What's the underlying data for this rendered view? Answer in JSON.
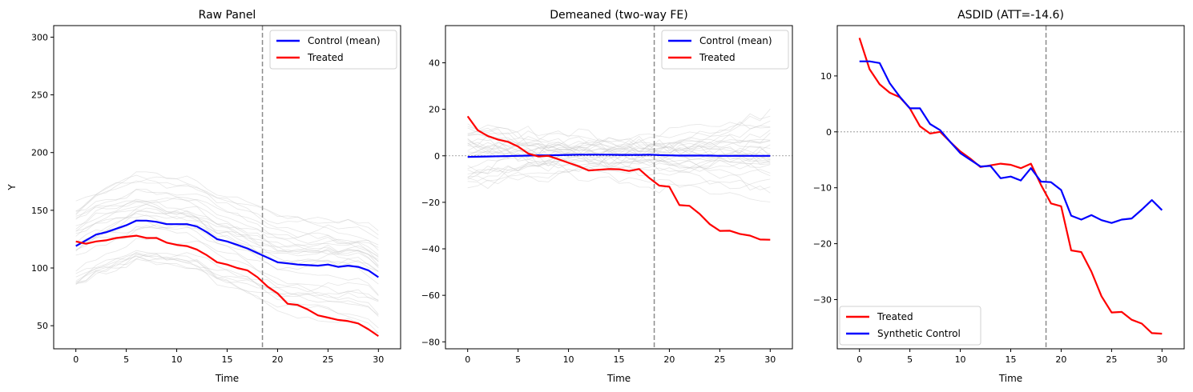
{
  "colors": {
    "treated": "#ff0000",
    "control": "#0000ff",
    "donor": "#c8c8c8",
    "vline": "#8c8c8c",
    "zero": "#8c8c8c"
  },
  "chart_data": [
    {
      "type": "line",
      "title": "Raw Panel",
      "xlabel": "Time",
      "ylabel": "Y",
      "xlim": [
        -2.2,
        32.2
      ],
      "ylim": [
        30,
        310
      ],
      "xticks": [
        0,
        5,
        10,
        15,
        20,
        25,
        30
      ],
      "yticks": [
        50,
        100,
        150,
        200,
        250,
        300
      ],
      "treatment_time": 18.5,
      "zero_line": false,
      "legend_position": "upper right",
      "grid": false,
      "series": [
        {
          "name": "Control (mean)",
          "color": "#0000ff",
          "values": [
            119,
            124,
            129,
            131,
            134,
            137,
            141,
            141,
            140,
            138,
            138,
            138,
            136,
            131,
            125,
            123,
            120,
            117,
            113,
            109,
            105,
            104,
            103,
            102.5,
            102,
            103,
            101,
            102,
            101,
            98,
            92
          ]
        },
        {
          "name": "Treated",
          "color": "#ff0000",
          "values": [
            123,
            121,
            123,
            124,
            126,
            127,
            128,
            126,
            126,
            122,
            120,
            119,
            116,
            111,
            105,
            103,
            100,
            98,
            92,
            84,
            78,
            69,
            68,
            64,
            59,
            57,
            55,
            54,
            52,
            47,
            41
          ]
        }
      ]
    },
    {
      "type": "line",
      "title": "Demeaned (two-way FE)",
      "xlabel": "Time",
      "ylabel": "",
      "xlim": [
        -2.2,
        32.2
      ],
      "ylim": [
        -83,
        56
      ],
      "xticks": [
        0,
        5,
        10,
        15,
        20,
        25,
        30
      ],
      "yticks": [
        -80,
        -60,
        -40,
        -20,
        0,
        20,
        40
      ],
      "treatment_time": 18.5,
      "zero_line": true,
      "legend_position": "upper right",
      "grid": false,
      "series": [
        {
          "name": "Control (mean)",
          "color": "#0000ff",
          "values": [
            -0.5,
            -0.4,
            -0.3,
            -0.2,
            -0.1,
            0,
            0.1,
            0.2,
            0.2,
            0.3,
            0.4,
            0.5,
            0.5,
            0.5,
            0.5,
            0.4,
            0.4,
            0.4,
            0.5,
            0.3,
            0.2,
            0.1,
            0.1,
            0.1,
            0.1,
            0,
            0,
            0,
            0,
            0,
            0
          ]
        },
        {
          "name": "Treated",
          "color": "#ff0000",
          "values": [
            17,
            11,
            8.5,
            7,
            6,
            4,
            1,
            -0.3,
            0,
            -1.5,
            -3,
            -4.5,
            -6.3,
            -6,
            -5.7,
            -5.8,
            -6.5,
            -5.7,
            -9.5,
            -12.8,
            -13.3,
            -21.2,
            -21.5,
            -25,
            -29.4,
            -32.3,
            -32.2,
            -33.6,
            -34.3,
            -36,
            -36.1
          ]
        }
      ]
    },
    {
      "type": "line",
      "title": "ASDID (ATT=-14.6)",
      "xlabel": "Time",
      "ylabel": "",
      "xlim": [
        -2.2,
        32.2
      ],
      "ylim": [
        -38.8,
        19
      ],
      "xticks": [
        0,
        5,
        10,
        15,
        20,
        25,
        30
      ],
      "yticks": [
        -30,
        -20,
        -10,
        0,
        10
      ],
      "treatment_time": 18.5,
      "zero_line": true,
      "legend_position": "lower left",
      "grid": false,
      "series": [
        {
          "name": "Treated",
          "color": "#ff0000",
          "values": [
            16.8,
            11.2,
            8.5,
            7,
            6.2,
            4.2,
            1,
            -0.3,
            0,
            -1.8,
            -3.5,
            -4.8,
            -6.3,
            -6,
            -5.7,
            -5.9,
            -6.5,
            -5.7,
            -9.5,
            -12.8,
            -13.3,
            -21.2,
            -21.5,
            -25,
            -29.4,
            -32.3,
            -32.2,
            -33.6,
            -34.3,
            -36,
            -36.1
          ]
        },
        {
          "name": "Synthetic Control",
          "color": "#0000ff",
          "values": [
            12.6,
            12.6,
            12.3,
            8.7,
            6.3,
            4.2,
            4.2,
            1.4,
            0.3,
            -1.8,
            -3.8,
            -5,
            -6.2,
            -6.1,
            -8.3,
            -8.0,
            -8.7,
            -6.5,
            -8.9,
            -9,
            -10.4,
            -15,
            -15.7,
            -14.9,
            -15.8,
            -16.3,
            -15.7,
            -15.5,
            -13.9,
            -12.2,
            -14
          ]
        }
      ]
    }
  ]
}
